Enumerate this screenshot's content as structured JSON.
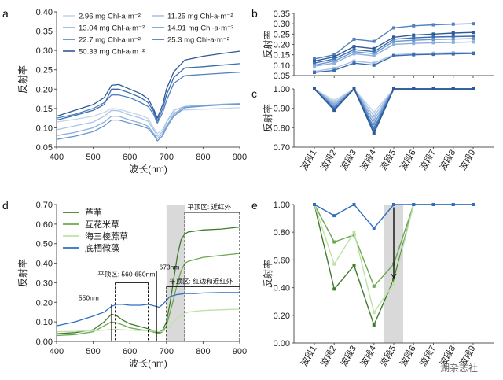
{
  "chart_data": [
    {
      "panel": "a",
      "type": "line",
      "xlabel": "波长(nm)",
      "ylabel": "反射率",
      "xlim": [
        400,
        900
      ],
      "ylim": [
        0.05,
        0.4
      ],
      "xticks": [
        400,
        500,
        600,
        700,
        800,
        900
      ],
      "yticks": [
        0.05,
        0.1,
        0.15,
        0.2,
        0.25,
        0.3,
        0.35,
        0.4
      ],
      "legend_position": "top-left",
      "x": [
        400,
        450,
        500,
        530,
        550,
        570,
        600,
        630,
        650,
        665,
        675,
        690,
        700,
        720,
        750,
        800,
        850,
        900
      ],
      "series": [
        {
          "name": "2.96 mg Chl-a·m⁻²",
          "color": "#c3d5ec",
          "values": [
            0.115,
            0.122,
            0.13,
            0.14,
            0.15,
            0.148,
            0.14,
            0.132,
            0.124,
            0.1,
            0.085,
            0.096,
            0.115,
            0.14,
            0.146,
            0.148,
            0.15,
            0.152
          ]
        },
        {
          "name": "11.25 mg Chl-a·m⁻²",
          "color": "#a8c3e6",
          "values": [
            0.095,
            0.105,
            0.115,
            0.13,
            0.145,
            0.144,
            0.133,
            0.125,
            0.117,
            0.095,
            0.078,
            0.09,
            0.115,
            0.145,
            0.155,
            0.158,
            0.16,
            0.162
          ]
        },
        {
          "name": "13.04 mg Chl-a·m⁻²",
          "color": "#8db0dc",
          "values": [
            0.08,
            0.088,
            0.1,
            0.115,
            0.13,
            0.13,
            0.12,
            0.112,
            0.104,
            0.085,
            0.072,
            0.085,
            0.105,
            0.135,
            0.155,
            0.158,
            0.161,
            0.163
          ]
        },
        {
          "name": "14.91 mg Chl-a·m⁻²",
          "color": "#6b96cf",
          "values": [
            0.07,
            0.078,
            0.09,
            0.105,
            0.12,
            0.12,
            0.112,
            0.105,
            0.098,
            0.082,
            0.066,
            0.08,
            0.1,
            0.13,
            0.152,
            0.156,
            0.159,
            0.161
          ]
        },
        {
          "name": "22.7 mg Chl-a·m⁻²",
          "color": "#4f80c0",
          "values": [
            0.125,
            0.135,
            0.15,
            0.165,
            0.185,
            0.185,
            0.178,
            0.165,
            0.155,
            0.135,
            0.112,
            0.14,
            0.17,
            0.215,
            0.235,
            0.238,
            0.241,
            0.244
          ]
        },
        {
          "name": "25.3 mg Chl-a·m⁻²",
          "color": "#3a6cae",
          "values": [
            0.12,
            0.132,
            0.145,
            0.16,
            0.2,
            0.2,
            0.19,
            0.178,
            0.165,
            0.142,
            0.118,
            0.15,
            0.185,
            0.23,
            0.255,
            0.258,
            0.262,
            0.266
          ]
        },
        {
          "name": "50.33 mg Chl-a·m⁻²",
          "color": "#2d5a96",
          "values": [
            0.13,
            0.145,
            0.16,
            0.178,
            0.21,
            0.212,
            0.2,
            0.188,
            0.175,
            0.148,
            0.125,
            0.16,
            0.2,
            0.245,
            0.275,
            0.285,
            0.292,
            0.298
          ]
        }
      ]
    },
    {
      "panel": "b",
      "type": "line",
      "ylabel": "反射率",
      "ylim": [
        0.05,
        0.35
      ],
      "yticks": [
        0.05,
        0.1,
        0.15,
        0.2,
        0.25,
        0.3,
        0.35
      ],
      "categories": [
        "波段1",
        "波段2",
        "波段3",
        "波段4",
        "波段5",
        "波段6",
        "波段7",
        "波段8",
        "波段9"
      ],
      "series": [
        {
          "color": "#4f80c0",
          "values": [
            0.13,
            0.15,
            0.225,
            0.215,
            0.28,
            0.29,
            0.295,
            0.298,
            0.3
          ]
        },
        {
          "color": "#2d5a96",
          "values": [
            0.12,
            0.14,
            0.19,
            0.18,
            0.235,
            0.245,
            0.25,
            0.255,
            0.258
          ]
        },
        {
          "color": "#3a6cae",
          "values": [
            0.11,
            0.13,
            0.175,
            0.165,
            0.225,
            0.232,
            0.236,
            0.238,
            0.24
          ]
        },
        {
          "color": "#6b96cf",
          "values": [
            0.1,
            0.12,
            0.165,
            0.155,
            0.215,
            0.22,
            0.224,
            0.226,
            0.228
          ]
        },
        {
          "color": "#8db0dc",
          "values": [
            0.095,
            0.11,
            0.155,
            0.145,
            0.2,
            0.205,
            0.208,
            0.21,
            0.212
          ]
        },
        {
          "color": "#a8c3e6",
          "values": [
            0.07,
            0.085,
            0.12,
            0.11,
            0.15,
            0.155,
            0.158,
            0.16,
            0.16
          ]
        },
        {
          "color": "#3a6cae",
          "values": [
            0.065,
            0.075,
            0.11,
            0.1,
            0.145,
            0.15,
            0.152,
            0.154,
            0.156
          ]
        }
      ]
    },
    {
      "panel": "c",
      "type": "line",
      "ylabel": "反射率",
      "ylim": [
        0.7,
        1.0
      ],
      "yticks": [
        0.7,
        0.8,
        0.9,
        1.0
      ],
      "categories": [
        "波段1",
        "波段2",
        "波段3",
        "波段4",
        "波段5",
        "波段6",
        "波段7",
        "波段8",
        "波段9"
      ],
      "series": [
        {
          "color": "#c3d5ec",
          "values": [
            1.0,
            0.94,
            1.0,
            0.88,
            1.0,
            1.0,
            1.0,
            1.0,
            1.0
          ]
        },
        {
          "color": "#a8c3e6",
          "values": [
            1.0,
            0.93,
            1.0,
            0.86,
            1.0,
            1.0,
            1.0,
            1.0,
            1.0
          ]
        },
        {
          "color": "#8db0dc",
          "values": [
            1.0,
            0.92,
            1.0,
            0.84,
            1.0,
            1.0,
            1.0,
            1.0,
            1.0
          ]
        },
        {
          "color": "#6b96cf",
          "values": [
            1.0,
            0.91,
            1.0,
            0.82,
            1.0,
            1.0,
            1.0,
            1.0,
            1.0
          ]
        },
        {
          "color": "#4f80c0",
          "values": [
            1.0,
            0.9,
            1.0,
            0.8,
            1.0,
            1.0,
            1.0,
            1.0,
            1.0
          ]
        },
        {
          "color": "#3a6cae",
          "values": [
            1.0,
            0.895,
            1.0,
            0.785,
            1.0,
            1.0,
            1.0,
            1.0,
            1.0
          ]
        },
        {
          "color": "#2d5a96",
          "values": [
            1.0,
            0.89,
            1.0,
            0.77,
            1.0,
            1.0,
            1.0,
            1.0,
            1.0
          ]
        }
      ]
    },
    {
      "panel": "d",
      "type": "line",
      "xlabel": "波长(nm)",
      "ylabel": "反射率",
      "xlim": [
        400,
        900
      ],
      "ylim": [
        0.0,
        0.7
      ],
      "xticks": [
        400,
        500,
        600,
        700,
        800,
        900
      ],
      "yticks": [
        0.0,
        0.1,
        0.2,
        0.3,
        0.4,
        0.5,
        0.6,
        0.7
      ],
      "legend_position": "top-left",
      "shaded_region": [
        700,
        750
      ],
      "x": [
        400,
        450,
        500,
        530,
        550,
        565,
        580,
        600,
        630,
        650,
        670,
        680,
        690,
        700,
        710,
        720,
        730,
        740,
        750,
        760,
        780,
        800,
        850,
        900
      ],
      "series": [
        {
          "name": "芦苇",
          "color": "#3f7a2e",
          "values": [
            0.04,
            0.045,
            0.06,
            0.1,
            0.14,
            0.13,
            0.11,
            0.09,
            0.075,
            0.065,
            0.05,
            0.045,
            0.06,
            0.1,
            0.2,
            0.32,
            0.44,
            0.52,
            0.55,
            0.56,
            0.565,
            0.57,
            0.575,
            0.585
          ]
        },
        {
          "name": "互花米草",
          "color": "#6aa84f",
          "values": [
            0.03,
            0.035,
            0.05,
            0.08,
            0.1,
            0.095,
            0.085,
            0.07,
            0.06,
            0.055,
            0.045,
            0.04,
            0.05,
            0.08,
            0.15,
            0.22,
            0.3,
            0.36,
            0.4,
            0.41,
            0.42,
            0.43,
            0.44,
            0.45
          ]
        },
        {
          "name": "海三棱藨草",
          "color": "#bfe0a8",
          "values": [
            0.05,
            0.052,
            0.055,
            0.058,
            0.062,
            0.062,
            0.06,
            0.058,
            0.056,
            0.055,
            0.052,
            0.05,
            0.052,
            0.06,
            0.08,
            0.1,
            0.12,
            0.135,
            0.145,
            0.15,
            0.155,
            0.158,
            0.162,
            0.165
          ]
        },
        {
          "name": "底栖微藻",
          "color": "#2f6fbf",
          "values": [
            0.08,
            0.1,
            0.13,
            0.15,
            0.18,
            0.19,
            0.19,
            0.185,
            0.185,
            0.19,
            0.18,
            0.175,
            0.19,
            0.21,
            0.23,
            0.235,
            0.24,
            0.242,
            0.245,
            0.245,
            0.245,
            0.248,
            0.25,
            0.25
          ]
        }
      ],
      "annotations": [
        "550nm",
        "平顶区: 560-650nm",
        "673nm",
        "平顶区: 近红外",
        "平顶区: 红边和近红外"
      ]
    },
    {
      "panel": "e",
      "type": "line",
      "ylabel": "反射率",
      "ylim": [
        0.0,
        1.0
      ],
      "yticks": [
        0.0,
        0.2,
        0.4,
        0.6,
        0.8,
        1.0
      ],
      "categories": [
        "波段1",
        "波段2",
        "波段3",
        "波段4",
        "波段5",
        "波段6",
        "波段7",
        "波段8",
        "波段9"
      ],
      "shaded_region": [
        "波段5"
      ],
      "series": [
        {
          "color": "#3f7a2e",
          "values": [
            1.0,
            0.39,
            0.56,
            0.13,
            0.46,
            1.0,
            1.0,
            1.0,
            1.0
          ]
        },
        {
          "color": "#6aa84f",
          "values": [
            1.0,
            0.73,
            0.78,
            0.41,
            0.57,
            1.0,
            1.0,
            1.0,
            1.0
          ]
        },
        {
          "color": "#bfe0a8",
          "values": [
            1.0,
            0.57,
            0.8,
            0.22,
            0.43,
            1.0,
            1.0,
            1.0,
            1.0
          ]
        },
        {
          "color": "#2f6fbf",
          "values": [
            1.0,
            0.92,
            1.0,
            0.83,
            1.0,
            1.0,
            1.0,
            1.0,
            1.0
          ]
        }
      ]
    }
  ],
  "watermark": "湖杂志社"
}
